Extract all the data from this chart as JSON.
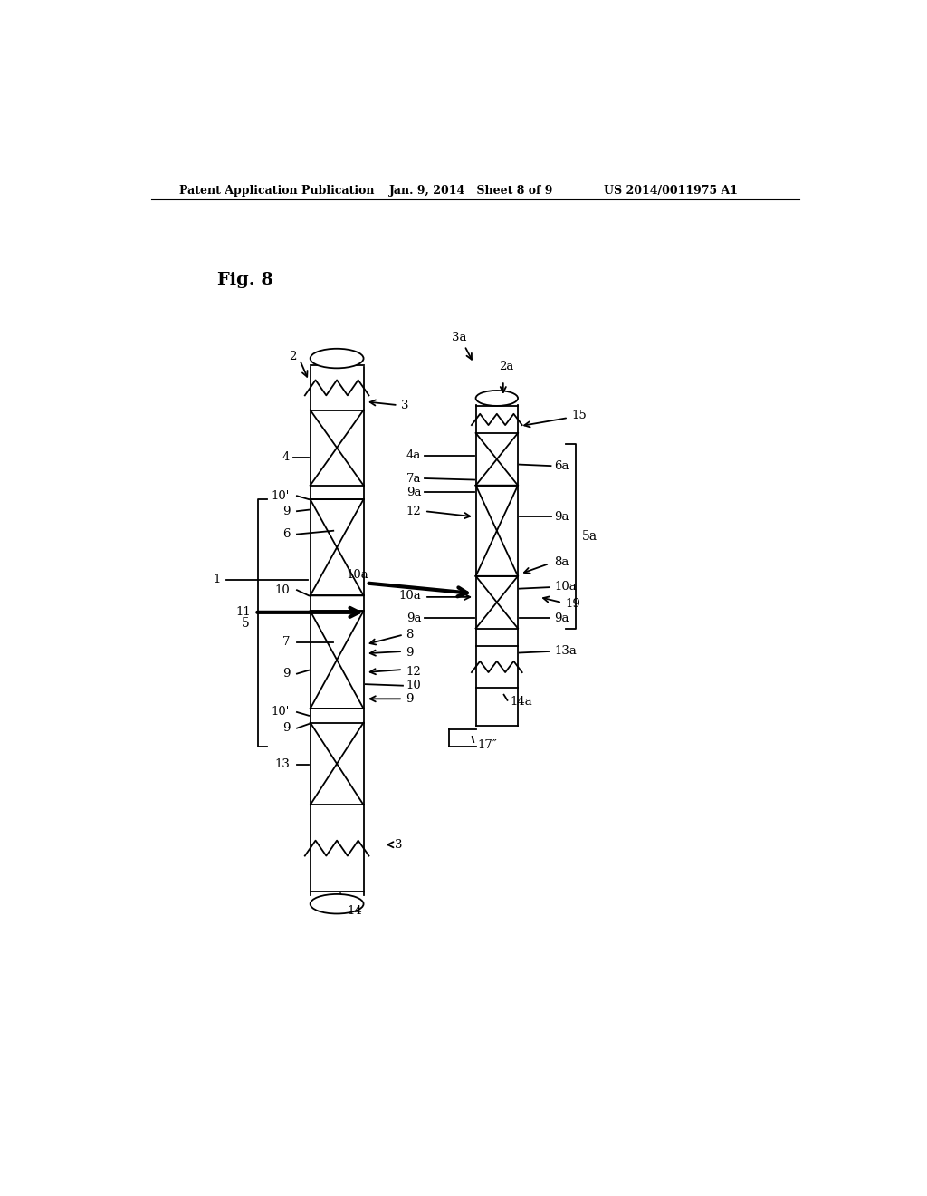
{
  "background_color": "#ffffff",
  "header_left": "Patent Application Publication",
  "header_mid": "Jan. 9, 2014   Sheet 8 of 9",
  "header_right": "US 2014/0011975 A1",
  "fig_label": "Fig. 8"
}
